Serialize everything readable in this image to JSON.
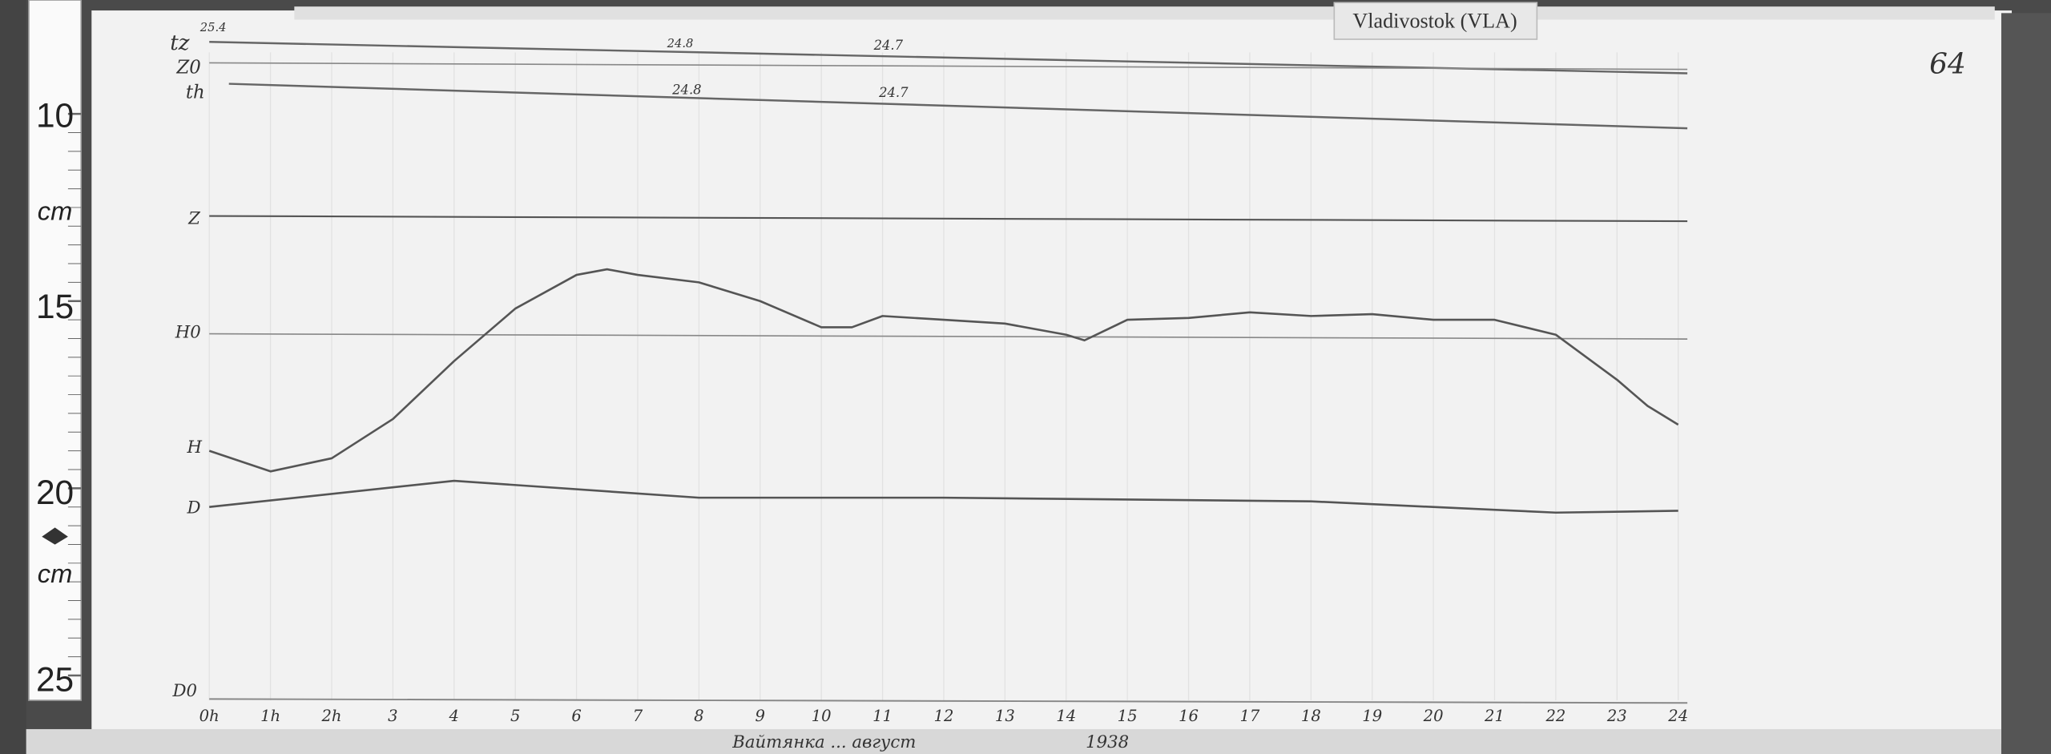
{
  "station_label": "Vladivostok (VLA)",
  "page_number": "64",
  "date_note": "1938",
  "footer_note": "Вайтянка ... август",
  "ruler": {
    "labels": [
      "10",
      "cm",
      "15",
      "20",
      "cm",
      "25"
    ]
  },
  "temperature_marks": {
    "tz_start": "25.4",
    "tz_mid": "24.8",
    "tz_mid2": "24.7",
    "th_mid": "24.8",
    "th_mid2": "24.7"
  },
  "chart_data": {
    "type": "line",
    "xlabel": "",
    "ylabel": "cm",
    "xlim": [
      0,
      24
    ],
    "ylim": [
      10,
      25
    ],
    "ytick_labels": [
      "10",
      "15",
      "20",
      "25"
    ],
    "xtick_labels": [
      "0h",
      "1h",
      "2h",
      "3",
      "4",
      "5",
      "6",
      "7",
      "8",
      "9",
      "10",
      "11",
      "12",
      "13",
      "14",
      "15",
      "16",
      "17",
      "18",
      "19",
      "20",
      "21",
      "22",
      "23",
      "24"
    ],
    "trace_labels": [
      "tz",
      "Z0",
      "th",
      "Z",
      "H0",
      "H",
      "D",
      "D0"
    ],
    "grid": true,
    "series": [
      {
        "name": "H",
        "x": [
          0,
          1,
          2,
          3,
          4,
          5,
          6,
          6.5,
          7,
          8,
          9,
          10,
          10.5,
          11,
          12,
          13,
          14,
          14.3,
          15,
          16,
          17,
          18,
          19,
          20,
          21,
          22,
          23,
          23.5,
          24
        ],
        "y": [
          19.0,
          19.55,
          19.2,
          18.15,
          16.6,
          15.2,
          14.3,
          14.15,
          14.3,
          14.5,
          15.0,
          15.7,
          15.7,
          15.4,
          15.5,
          15.6,
          15.9,
          16.05,
          15.5,
          15.45,
          15.3,
          15.4,
          15.35,
          15.5,
          15.5,
          15.9,
          17.1,
          17.8,
          18.3
        ]
      },
      {
        "name": "D",
        "x": [
          0,
          4,
          8,
          12,
          18,
          22,
          24
        ],
        "y": [
          20.5,
          19.8,
          20.25,
          20.25,
          20.35,
          20.65,
          20.6
        ]
      }
    ]
  },
  "colors": {
    "paper": "#f1f1f1",
    "trace": "#555555",
    "board": "#4a4a4a"
  }
}
